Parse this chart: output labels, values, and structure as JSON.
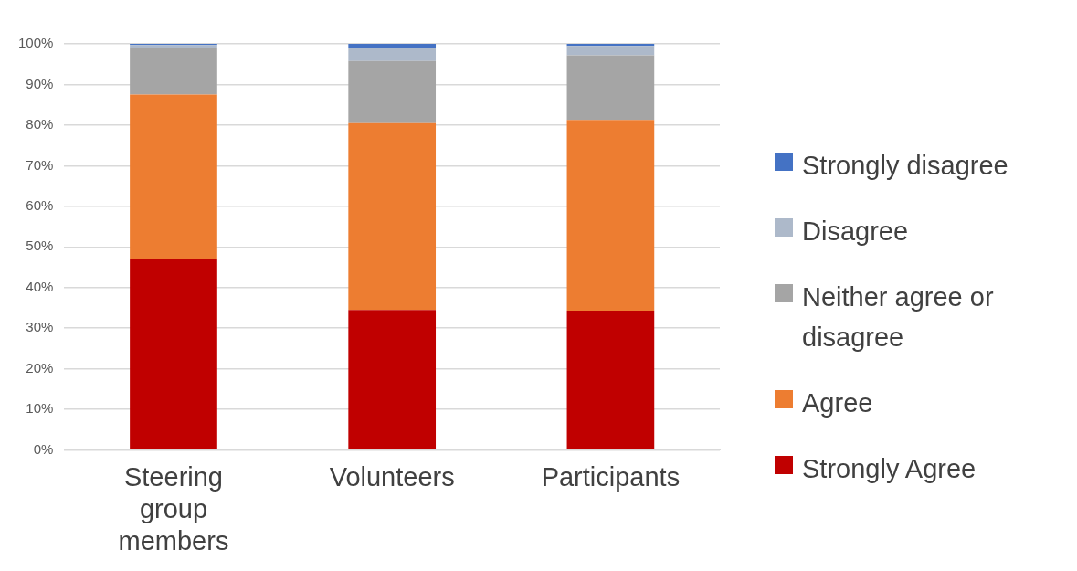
{
  "chart_data": {
    "type": "bar",
    "stacked": true,
    "categories": [
      "Steering group members",
      "Volunteers",
      "Participants"
    ],
    "series": [
      {
        "name": "Strongly Agree",
        "color": "#c00000",
        "values": [
          47.1,
          34.5,
          34.3
        ]
      },
      {
        "name": "Agree",
        "color": "#ed7d31",
        "values": [
          40.4,
          46.0,
          47.0
        ]
      },
      {
        "name": "Neither agree or disagree",
        "color": "#a5a5a5",
        "values": [
          11.6,
          15.3,
          15.9
        ]
      },
      {
        "name": "Disagree",
        "color": "#adb9ca",
        "values": [
          0.6,
          3.1,
          2.3
        ]
      },
      {
        "name": "Strongly disagree",
        "color": "#4472c4",
        "values": [
          0.3,
          1.1,
          0.5
        ]
      }
    ],
    "ylim": [
      0,
      100
    ],
    "yticks": [
      {
        "value": 0,
        "label": "0%"
      },
      {
        "value": 10,
        "label": "10%"
      },
      {
        "value": 20,
        "label": "20%"
      },
      {
        "value": 30,
        "label": "30%"
      },
      {
        "value": 40,
        "label": "40%"
      },
      {
        "value": 50,
        "label": "50%"
      },
      {
        "value": 60,
        "label": "60%"
      },
      {
        "value": 70,
        "label": "70%"
      },
      {
        "value": 80,
        "label": "80%"
      },
      {
        "value": 90,
        "label": "90%"
      },
      {
        "value": 100,
        "label": "100%"
      }
    ],
    "grid": "y",
    "legend": "right"
  }
}
